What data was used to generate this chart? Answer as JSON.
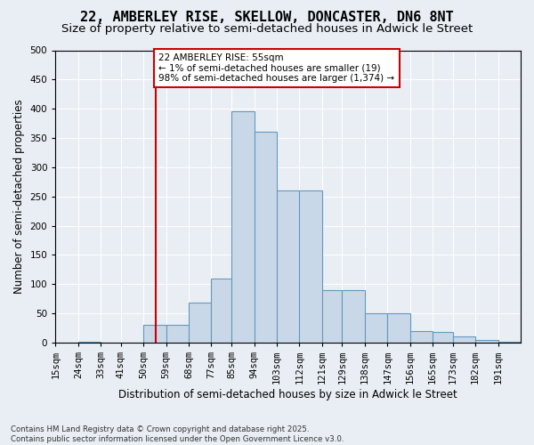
{
  "title_line1": "22, AMBERLEY RISE, SKELLOW, DONCASTER, DN6 8NT",
  "title_line2": "Size of property relative to semi-detached houses in Adwick le Street",
  "xlabel": "Distribution of semi-detached houses by size in Adwick le Street",
  "ylabel": "Number of semi-detached properties",
  "bin_labels": [
    "15sqm",
    "24sqm",
    "33sqm",
    "41sqm",
    "50sqm",
    "59sqm",
    "68sqm",
    "77sqm",
    "85sqm",
    "94sqm",
    "103sqm",
    "112sqm",
    "121sqm",
    "129sqm",
    "138sqm",
    "147sqm",
    "156sqm",
    "165sqm",
    "173sqm",
    "182sqm",
    "191sqm"
  ],
  "bin_edges": [
    15,
    24,
    33,
    41,
    50,
    59,
    68,
    77,
    85,
    94,
    103,
    112,
    121,
    129,
    138,
    147,
    156,
    165,
    173,
    182,
    191,
    200
  ],
  "bar_heights": [
    0,
    1,
    0,
    0,
    30,
    30,
    68,
    110,
    395,
    360,
    260,
    260,
    90,
    90,
    50,
    50,
    20,
    18,
    10,
    5,
    2
  ],
  "bar_color": "#c8d8e8",
  "bar_edge_color": "#6699bb",
  "vline_x": 55,
  "vline_color": "#cc0000",
  "annotation_text": "22 AMBERLEY RISE: 55sqm\n← 1% of semi-detached houses are smaller (19)\n98% of semi-detached houses are larger (1,374) →",
  "annotation_box_color": "#ffffff",
  "annotation_box_edge_color": "#cc0000",
  "ylim": [
    0,
    500
  ],
  "yticks": [
    0,
    50,
    100,
    150,
    200,
    250,
    300,
    350,
    400,
    450,
    500
  ],
  "xlim": [
    15,
    200
  ],
  "bg_color": "#e8eef4",
  "plot_bg_color": "#e8eef4",
  "footer_text": "Contains HM Land Registry data © Crown copyright and database right 2025.\nContains public sector information licensed under the Open Government Licence v3.0.",
  "title_fontsize": 11,
  "subtitle_fontsize": 9.5,
  "axis_label_fontsize": 8.5,
  "tick_fontsize": 7.5,
  "annotation_fontsize": 7.5
}
